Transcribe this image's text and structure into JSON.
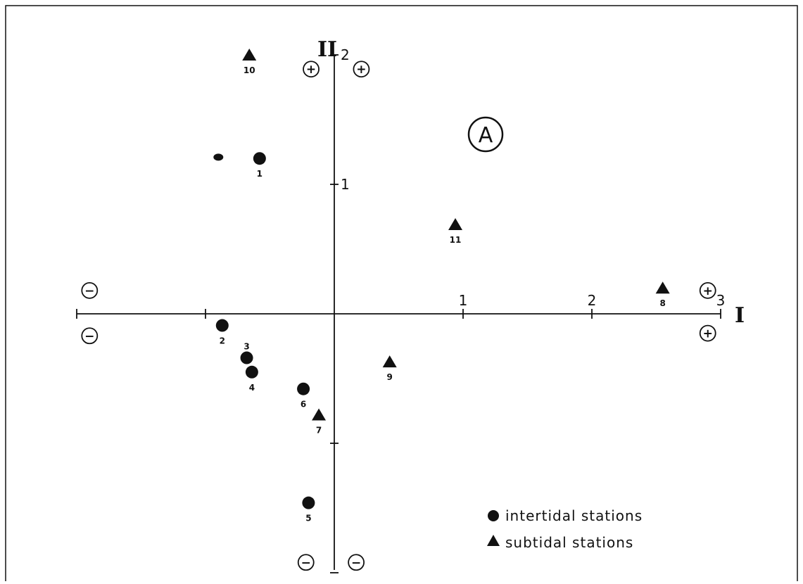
{
  "chart_data": {
    "type": "scatter",
    "panel_label": "A",
    "xlabel": "I",
    "ylabel": "II",
    "xlim": [
      -2,
      3
    ],
    "ylim": [
      -2,
      2
    ],
    "x_ticks": [
      -2,
      -1,
      0,
      1,
      2,
      3
    ],
    "x_tick_labels": [
      "",
      "",
      "",
      "1",
      "2",
      "3"
    ],
    "y_ticks": [
      -2,
      -1,
      0,
      1,
      2
    ],
    "y_tick_labels": [
      "",
      "",
      "",
      "1",
      "2"
    ],
    "grid": false,
    "legend_position": "bottom-right",
    "series": [
      {
        "name": "intertidal stations",
        "marker": "circle",
        "points": [
          {
            "label": "1",
            "x": -0.58,
            "y": 1.2
          },
          {
            "label": "2",
            "x": -0.87,
            "y": -0.09
          },
          {
            "label": "3",
            "x": -0.68,
            "y": -0.34
          },
          {
            "label": "4",
            "x": -0.64,
            "y": -0.45
          },
          {
            "label": "5",
            "x": -0.2,
            "y": -1.46
          },
          {
            "label": "6",
            "x": -0.24,
            "y": -0.58
          }
        ]
      },
      {
        "name": "subtidal stations",
        "marker": "triangle",
        "points": [
          {
            "label": "7",
            "x": -0.12,
            "y": -0.78
          },
          {
            "label": "8",
            "x": 2.55,
            "y": 0.2
          },
          {
            "label": "9",
            "x": 0.43,
            "y": -0.37
          },
          {
            "label": "10",
            "x": -0.66,
            "y": 2.0
          },
          {
            "label": "11",
            "x": 0.94,
            "y": 0.69
          }
        ]
      }
    ],
    "extra_marks": [
      {
        "shape": "small-ellipse",
        "x": -0.9,
        "y": 1.21
      }
    ],
    "sign_markers": [
      {
        "sign": "+",
        "x": -0.18,
        "y": 1.89
      },
      {
        "sign": "+",
        "x": 0.21,
        "y": 1.89
      },
      {
        "sign": "+",
        "x": 2.9,
        "y": 0.18
      },
      {
        "sign": "+",
        "x": 2.9,
        "y": -0.15
      },
      {
        "sign": "−",
        "x": -1.9,
        "y": 0.18
      },
      {
        "sign": "−",
        "x": -1.9,
        "y": -0.17
      },
      {
        "sign": "−",
        "x": -0.22,
        "y": -1.92
      },
      {
        "sign": "−",
        "x": 0.17,
        "y": -1.92
      }
    ]
  }
}
